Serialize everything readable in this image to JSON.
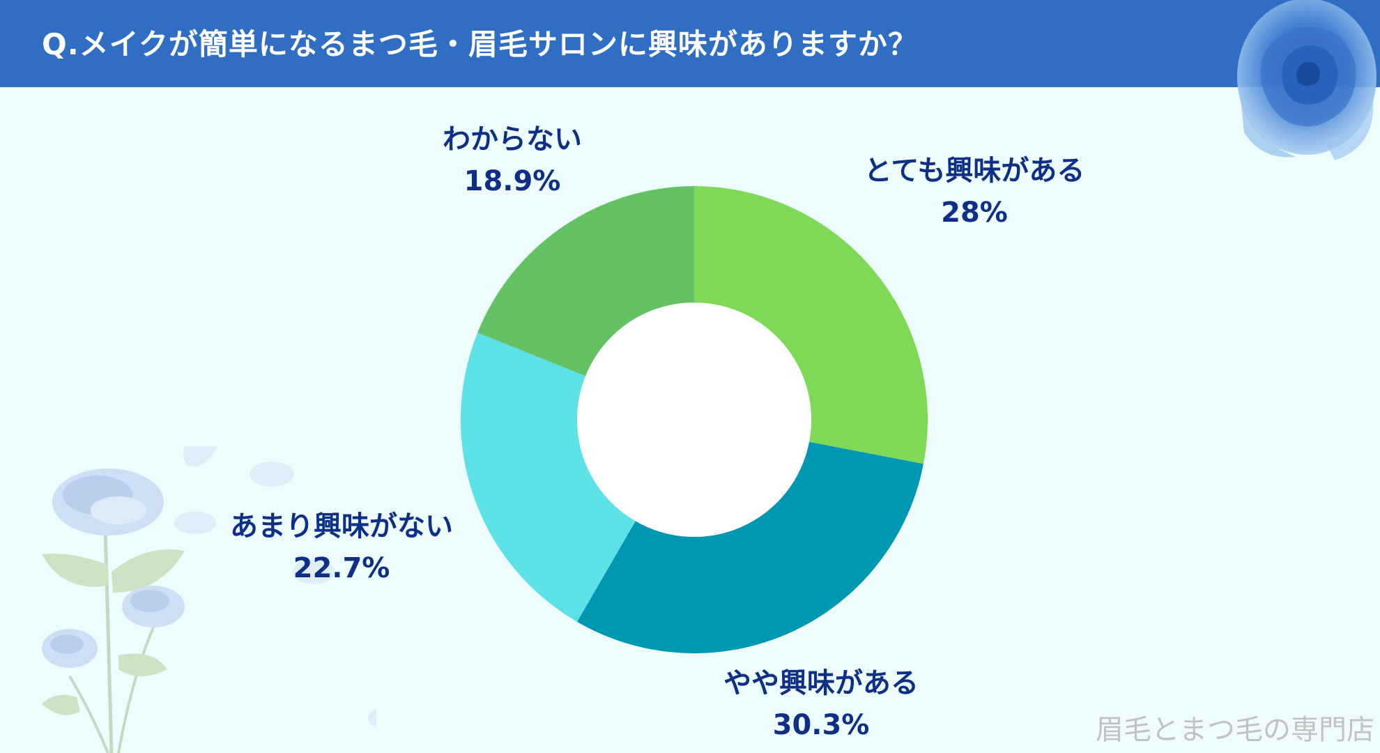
{
  "header": {
    "title": "Q.メイクが簡単になるまつ毛・眉毛サロンに興味がありますか？"
  },
  "brand": "眉毛とまつ毛の専門店",
  "colors": {
    "header_bg": "#2f6ec2",
    "page_bg": "#eefcfd",
    "label_text": "#0e2f86"
  },
  "chart_data": {
    "type": "pie",
    "donut": true,
    "categories": [
      "とても興味がある",
      "やや興味がある",
      "あまり興味がない",
      "わからない"
    ],
    "values": [
      28,
      30.3,
      22.7,
      18.9
    ],
    "value_labels": [
      "28%",
      "30.3%",
      "22.7%",
      "18.9%"
    ],
    "colors": [
      "#7ed957",
      "#0097b2",
      "#5ce1e6",
      "#62c264"
    ],
    "start_angle": "12 o'clock",
    "direction": "clockwise"
  }
}
